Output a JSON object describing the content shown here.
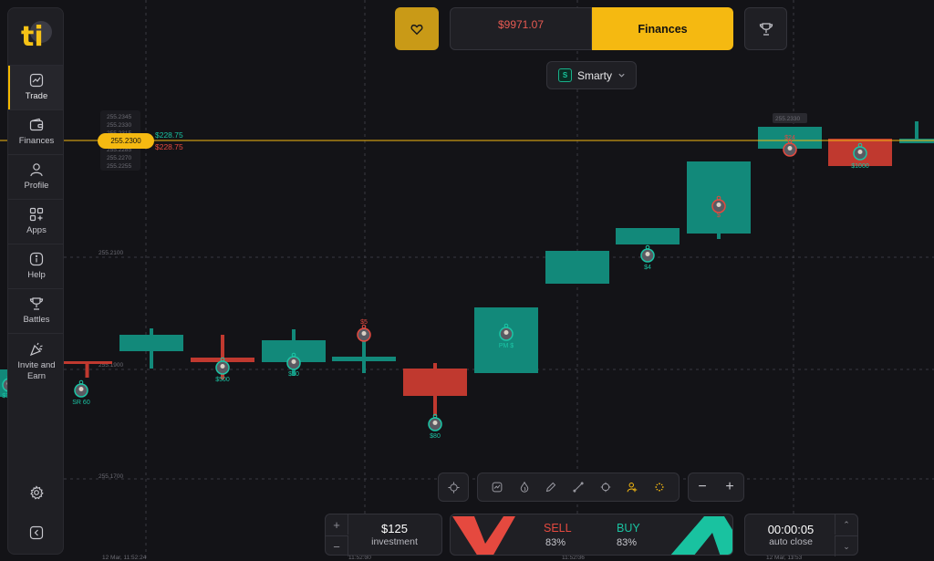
{
  "sidebar": {
    "logo": "ti",
    "items": [
      {
        "label": "Trade",
        "icon": "chart-icon",
        "active": true
      },
      {
        "label": "Finances",
        "icon": "wallet-icon"
      },
      {
        "label": "Profile",
        "icon": "user-icon"
      },
      {
        "label": "Apps",
        "icon": "apps-icon"
      },
      {
        "label": "Help",
        "icon": "info-icon"
      },
      {
        "label": "Battles",
        "icon": "trophy-icon"
      },
      {
        "label": "Invite and Earn",
        "icon": "party-icon"
      }
    ],
    "bottom": [
      "settings-icon",
      "collapse-icon"
    ]
  },
  "header": {
    "balance": "$9971.07",
    "finances_label": "Finances",
    "asset": "Smarty"
  },
  "price": {
    "current": "255.2300",
    "profit_up": "$228.75",
    "profit_down": "$228.75",
    "mini_ticks": [
      "255.2345",
      "255.2330",
      "255.2315",
      "255.2285",
      "255.2270",
      "255.2255"
    ],
    "top_tag": "255.2330"
  },
  "axis": {
    "y_ticks": [
      "255.2100",
      "255.1900",
      "255.1700"
    ],
    "x_ticks": [
      "12 Mar, 11:52:24",
      "11:52:30",
      "11:52:36",
      "12 Mar, 11:53"
    ]
  },
  "trade_labels": [
    {
      "text": "$300",
      "color": "#1bc6a6"
    },
    {
      "text": "SR 60",
      "color": "#1bc6a6"
    },
    {
      "text": "$500",
      "color": "#1bc6a6"
    },
    {
      "text": "$50",
      "color": "#1bc6a6"
    },
    {
      "text": "$5",
      "color": "#e5493f"
    },
    {
      "text": "$80",
      "color": "#1bc6a6"
    },
    {
      "text": "PM $",
      "color": "#1bc6a6"
    },
    {
      "text": "$4",
      "color": "#1bc6a6"
    },
    {
      "text": "$",
      "color": "#e5493f"
    },
    {
      "text": "$24",
      "color": "#e5493f"
    },
    {
      "text": "$1000",
      "color": "#1bc6a6"
    }
  ],
  "bottom": {
    "investment_value": "$125",
    "investment_label": "investment",
    "sell_label": "SELL",
    "sell_percent": "83%",
    "buy_label": "BUY",
    "buy_percent": "83%",
    "timer_value": "00:00:05",
    "timer_label": "auto close"
  },
  "colors": {
    "up": "#12897a",
    "down": "#c0392f",
    "accent": "#f5b911",
    "background": "#131317"
  }
}
